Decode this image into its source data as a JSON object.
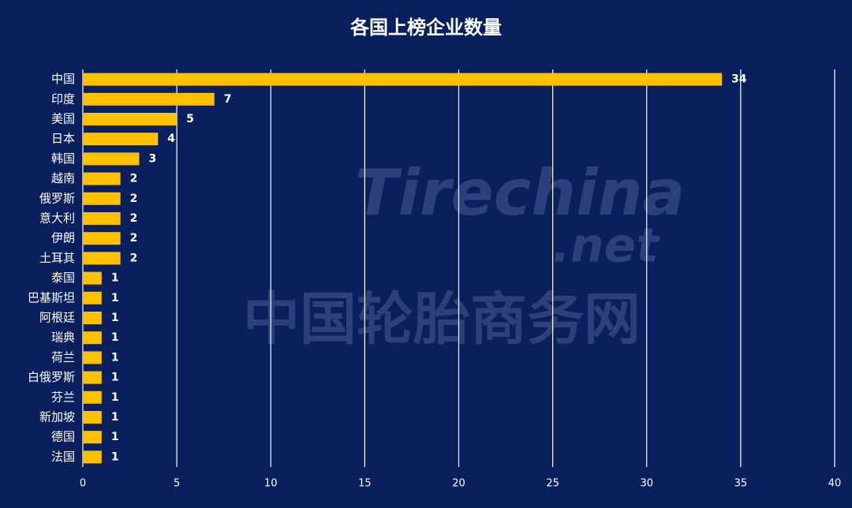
{
  "chart_data": {
    "type": "bar",
    "orientation": "horizontal",
    "title": "各国上榜企业数量",
    "categories": [
      "中国",
      "印度",
      "美国",
      "日本",
      "韩国",
      "越南",
      "俄罗斯",
      "意大利",
      "伊朗",
      "土耳其",
      "泰国",
      "巴基斯坦",
      "阿根廷",
      "瑞典",
      "荷兰",
      "白俄罗斯",
      "芬兰",
      "新加坡",
      "德国",
      "法国"
    ],
    "values": [
      34,
      7,
      5,
      4,
      3,
      2,
      2,
      2,
      2,
      2,
      1,
      1,
      1,
      1,
      1,
      1,
      1,
      1,
      1,
      1
    ],
    "color": "#ffc000",
    "xlim": [
      0,
      40
    ],
    "xticks": [
      0,
      5,
      10,
      15,
      20,
      25,
      30,
      35,
      40
    ],
    "grid": true,
    "annotations": [
      "Tirechina",
      ".net",
      "中国轮胎商务网"
    ]
  }
}
